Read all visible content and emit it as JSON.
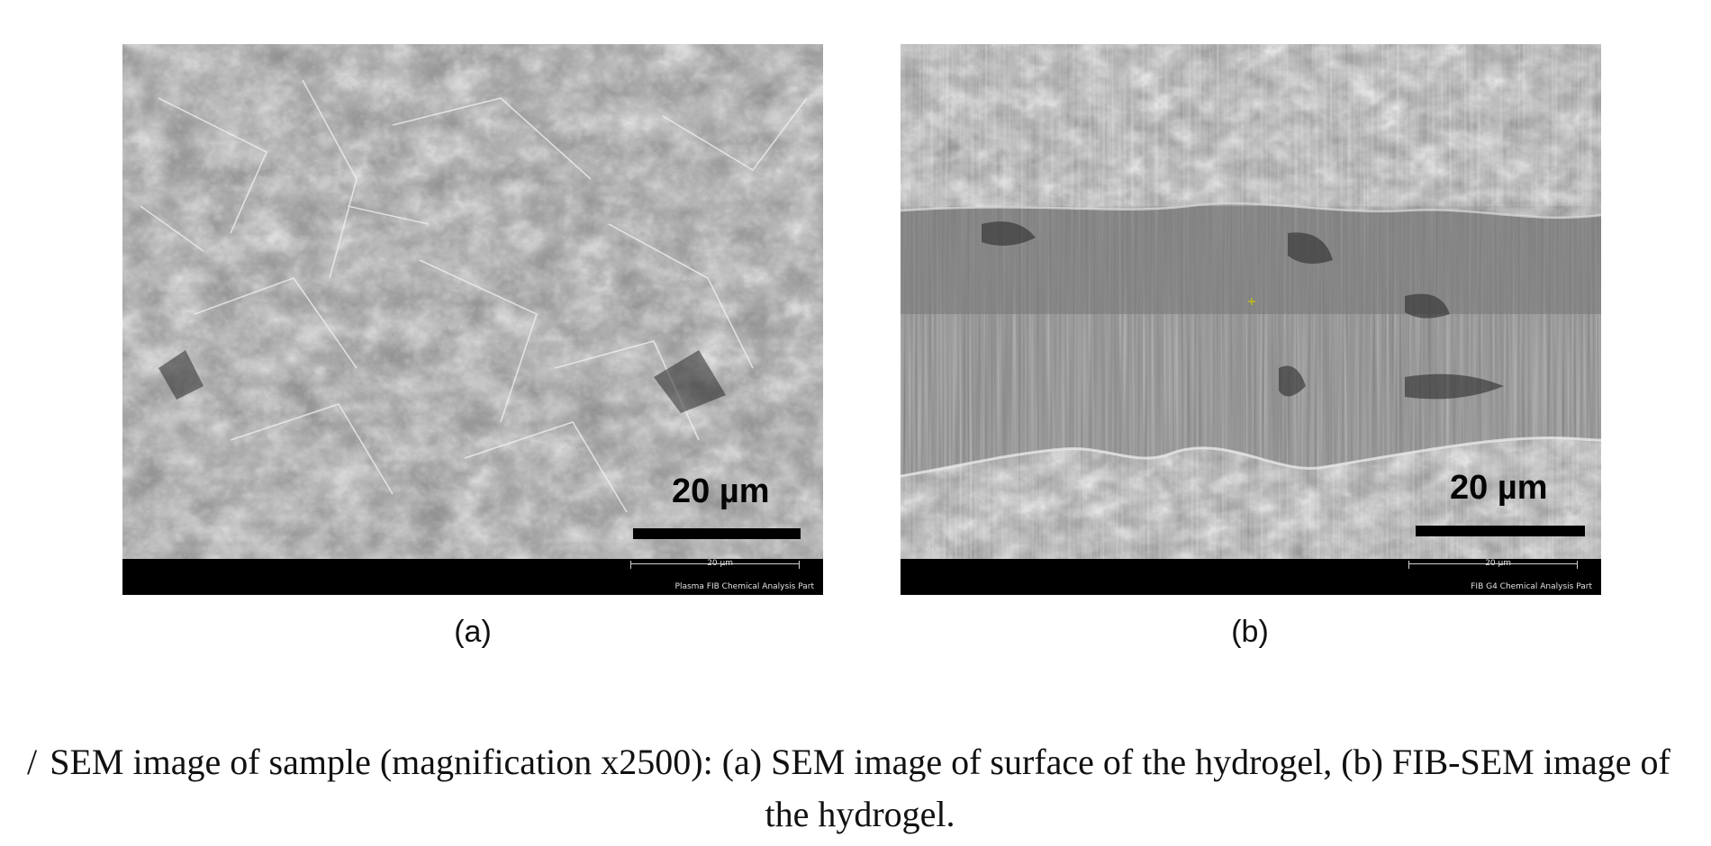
{
  "figure": {
    "panels": [
      {
        "label": "(a)",
        "scale_bar": "20 µm",
        "databar_scale": "20 µm",
        "databar_instrument": "Plasma FIB  Chemical Analysis Part"
      },
      {
        "label": "(b)",
        "scale_bar": "20 µm",
        "databar_scale": "20 µm",
        "databar_instrument": "FIB G4  Chemical Analysis Part"
      }
    ],
    "caption_mark": "/",
    "caption": "SEM image of sample (magnification x2500): (a) SEM image of surface of the hydrogel, (b) FIB-SEM image of the hydrogel."
  },
  "colors": {
    "background": "#ffffff",
    "micrograph_gray": "#8a8a8a",
    "databar": "#000000",
    "text": "#111111"
  }
}
